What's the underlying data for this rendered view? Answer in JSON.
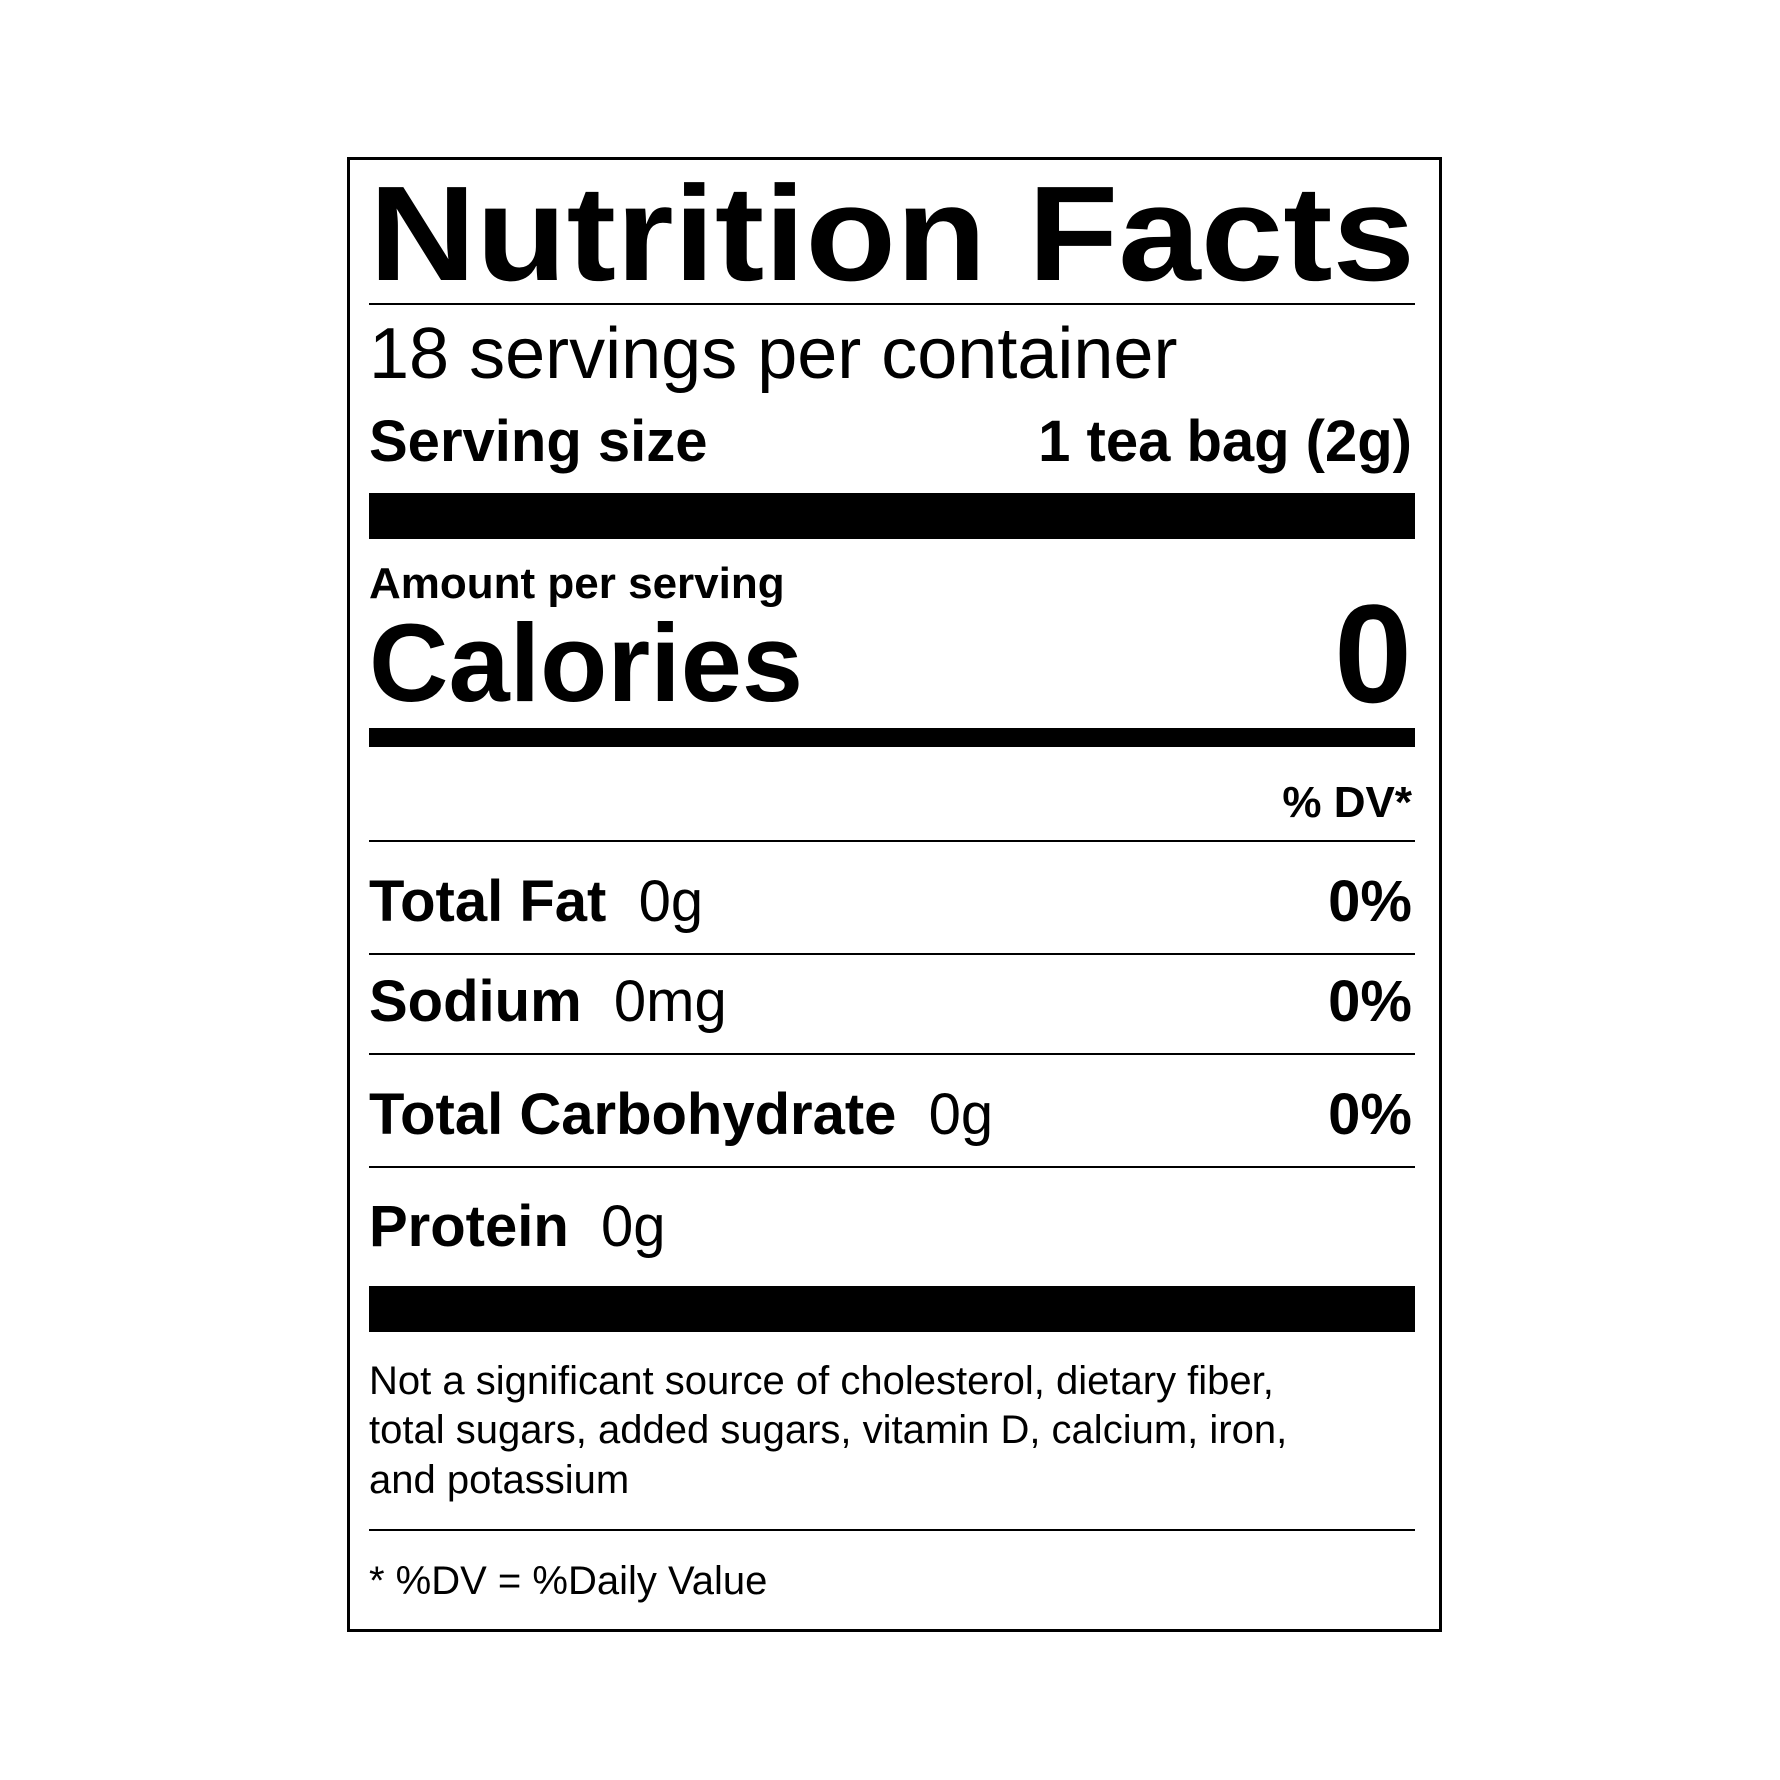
{
  "title": "Nutrition Facts",
  "servings_per_container": "18 servings per container",
  "serving_size": {
    "label": "Serving size",
    "value": "1 tea bag (2g)"
  },
  "amount_per_serving": "Amount per serving",
  "calories": {
    "label": "Calories",
    "value": "0"
  },
  "dv_header": "% DV*",
  "nutrients": [
    {
      "name": "Total Fat",
      "amount": "0g",
      "dv": "0%"
    },
    {
      "name": "Sodium",
      "amount": "0mg",
      "dv": "0%"
    },
    {
      "name": "Total Carbohydrate",
      "amount": "0g",
      "dv": "0%"
    },
    {
      "name": "Protein",
      "amount": "0g",
      "dv": ""
    }
  ],
  "footnote_lines": [
    "Not a significant source of cholesterol, dietary fiber,",
    "total sugars, added sugars, vitamin D, calcium, iron,",
    "and potassium"
  ],
  "dv_definition": "* %DV = %Daily Value"
}
